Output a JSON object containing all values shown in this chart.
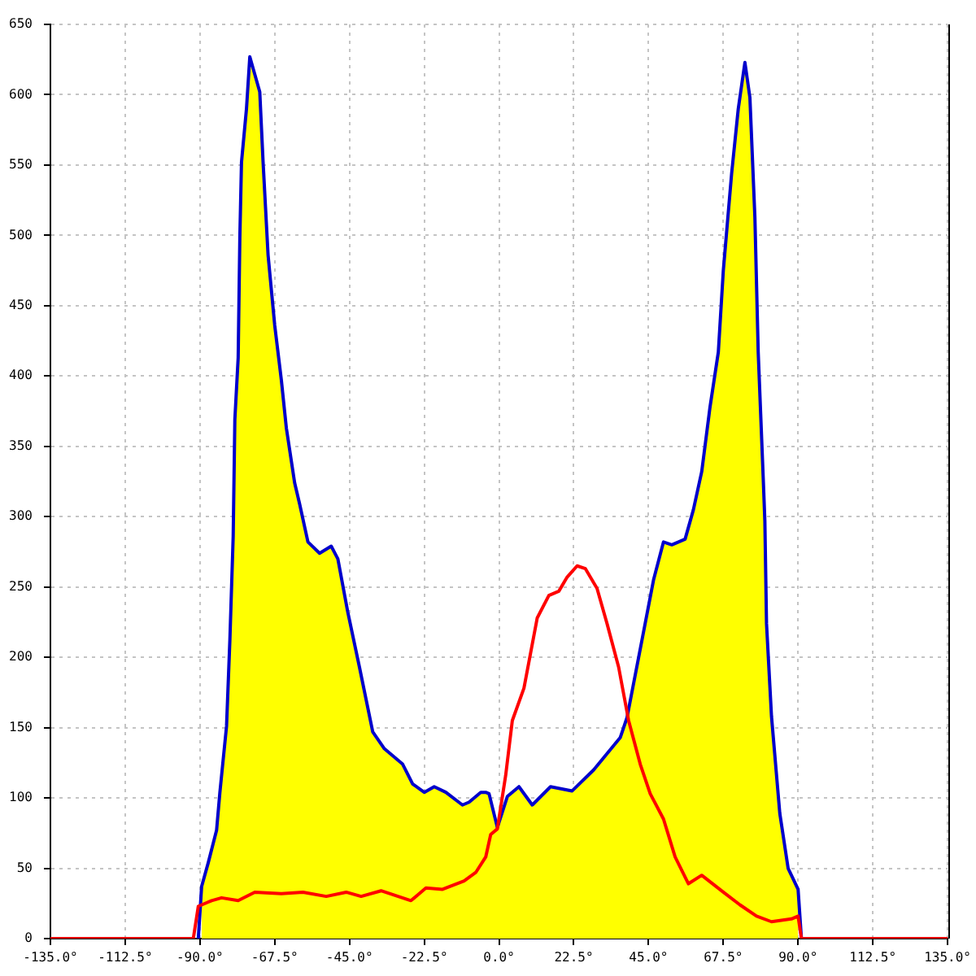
{
  "chart_data": {
    "type": "line",
    "series": [
      {
        "type": "area",
        "color": "#ffff00",
        "x": [
          -89.5,
          -87.5,
          -85,
          -84,
          -82,
          -81,
          -80,
          -79.5,
          -78.5,
          -78,
          -77.5,
          -76,
          -75,
          -72,
          -71,
          -69.5,
          -67.5,
          -65.5,
          -64,
          -61.5,
          -60,
          -57.5,
          -54,
          -50.5,
          -48.5,
          -45.5,
          -42,
          -38,
          -34.5,
          -29,
          -26,
          -22.5,
          -19.5,
          -16,
          -11,
          -9,
          -5.5,
          -4,
          -3,
          -0.5,
          2.5,
          6,
          10,
          15.5,
          22,
          28.5,
          36.5,
          38.5,
          43,
          46.5,
          49.5,
          52,
          56,
          58.5,
          61,
          63.5,
          66,
          67.5,
          70,
          72,
          74,
          75.5,
          77,
          78,
          79.5,
          80,
          80.5,
          82,
          84.5,
          87,
          90
        ],
        "values": [
          37,
          54,
          77,
          104,
          151,
          212,
          286,
          369,
          413,
          498,
          552,
          590,
          627,
          602,
          552,
          486,
          436,
          397,
          363,
          324,
          309,
          282,
          274,
          279,
          270,
          232,
          193,
          147,
          135,
          124,
          110,
          104,
          108,
          104,
          95,
          97,
          104,
          104,
          103,
          79,
          101,
          108,
          95,
          108,
          105,
          120,
          143,
          157,
          212,
          255,
          282,
          280,
          284,
          305,
          332,
          378,
          417,
          475,
          544,
          590,
          623,
          598,
          513,
          417,
          328,
          297,
          224,
          158,
          89,
          50,
          35
        ]
      },
      {
        "color": "#0000cc",
        "x": [
          -90.5,
          -89.5,
          -87.5,
          -85,
          -84,
          -82,
          -81,
          -80,
          -79.5,
          -78.5,
          -78,
          -77.5,
          -76,
          -75,
          -72,
          -71,
          -69.5,
          -67.5,
          -65.5,
          -64,
          -61.5,
          -60,
          -57.5,
          -54,
          -50.5,
          -48.5,
          -45.5,
          -42,
          -38,
          -34.5,
          -29,
          -26,
          -22.5,
          -19.5,
          -16,
          -11,
          -9,
          -5.5,
          -4,
          -3,
          -0.5,
          2.5,
          6,
          10,
          15.5,
          22,
          28.5,
          36.5,
          38.5,
          43,
          46.5,
          49.5,
          52,
          56,
          58.5,
          61,
          63.5,
          66,
          67.5,
          70,
          72,
          74,
          75.5,
          77,
          78,
          79.5,
          80,
          80.5,
          82,
          84.5,
          87,
          90,
          91
        ],
        "values": [
          0,
          37,
          54,
          77,
          104,
          151,
          212,
          286,
          369,
          413,
          498,
          552,
          590,
          627,
          602,
          552,
          486,
          436,
          397,
          363,
          324,
          309,
          282,
          274,
          279,
          270,
          232,
          193,
          147,
          135,
          124,
          110,
          104,
          108,
          104,
          95,
          97,
          104,
          104,
          103,
          79,
          101,
          108,
          95,
          108,
          105,
          120,
          143,
          157,
          212,
          255,
          282,
          280,
          284,
          305,
          332,
          378,
          417,
          475,
          544,
          590,
          623,
          598,
          513,
          417,
          328,
          297,
          224,
          158,
          89,
          50,
          35,
          0
        ]
      },
      {
        "color": "#ff0000",
        "x": [
          -135,
          -92,
          -90.5,
          -86.5,
          -83.5,
          -78.5,
          -73.5,
          -65.5,
          -59,
          -52,
          -46,
          -41.5,
          -35.5,
          -26.5,
          -22,
          -17,
          -10.5,
          -7,
          -4,
          -2.5,
          -0.5,
          2,
          4,
          7.5,
          11.5,
          15,
          18,
          20.5,
          23.5,
          26,
          29.5,
          32.5,
          36,
          39,
          42.5,
          45.5,
          49.5,
          53,
          57,
          61,
          67.5,
          72.5,
          77.5,
          82,
          88,
          90,
          91,
          135
        ],
        "values": [
          0,
          0,
          23,
          27,
          29,
          27,
          33,
          32,
          33,
          30,
          33,
          30,
          34,
          27,
          36,
          35,
          41,
          47,
          58,
          74,
          78,
          116,
          155,
          178,
          228,
          244,
          247,
          257,
          265,
          263,
          249,
          224,
          193,
          155,
          124,
          103,
          85,
          58,
          39,
          45,
          33,
          24,
          16,
          12,
          14,
          16,
          0,
          0
        ]
      }
    ],
    "xlim": [
      -135,
      135
    ],
    "xticks": [
      {
        "value": -135,
        "label": "-135.0°"
      },
      {
        "value": -112.5,
        "label": "-112.5°"
      },
      {
        "value": -90,
        "label": "-90.0°"
      },
      {
        "value": -67.5,
        "label": "-67.5°"
      },
      {
        "value": -45,
        "label": "-45.0°"
      },
      {
        "value": -22.5,
        "label": "-22.5°"
      },
      {
        "value": 0,
        "label": "0.0°"
      },
      {
        "value": 22.5,
        "label": "22.5°"
      },
      {
        "value": 45,
        "label": "45.0°"
      },
      {
        "value": 67.5,
        "label": "67.5°"
      },
      {
        "value": 90,
        "label": "90.0°"
      },
      {
        "value": 112.5,
        "label": "112.5°"
      },
      {
        "value": 135,
        "label": "135.0°"
      }
    ],
    "ylim": [
      0,
      650
    ],
    "yticks": [
      0,
      50,
      100,
      150,
      200,
      250,
      300,
      350,
      400,
      450,
      500,
      550,
      600,
      650
    ],
    "grid": true
  }
}
